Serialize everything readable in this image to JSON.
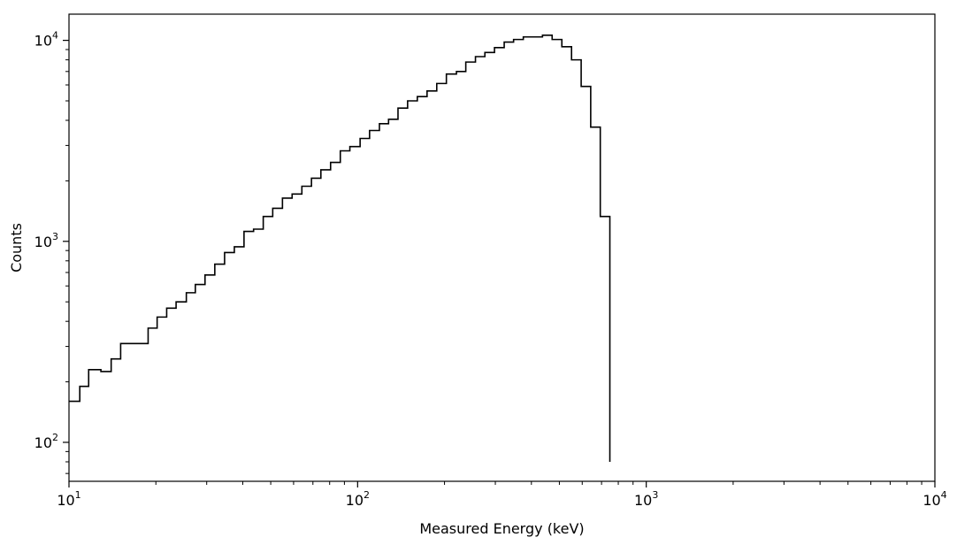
{
  "chart_data": {
    "type": "line",
    "style": "step",
    "title": "",
    "xlabel": "Measured Energy (keV)",
    "ylabel": "Counts",
    "x_scale": "log",
    "y_scale": "log",
    "xlim": [
      10,
      10000
    ],
    "ylim": [
      64,
      13500
    ],
    "grid": false,
    "legend": "none",
    "line_color": "#000000",
    "x_ticks": [
      {
        "base": "10",
        "exp": "1",
        "value": 10
      },
      {
        "base": "10",
        "exp": "2",
        "value": 100
      },
      {
        "base": "10",
        "exp": "3",
        "value": 1000
      },
      {
        "base": "10",
        "exp": "4",
        "value": 10000
      }
    ],
    "y_ticks": [
      {
        "base": "10",
        "exp": "2",
        "value": 100
      },
      {
        "base": "10",
        "exp": "3",
        "value": 1000
      },
      {
        "base": "10",
        "exp": "4",
        "value": 10000
      }
    ],
    "bin_edges": [
      10.0,
      10.9,
      11.7,
      12.9,
      14.0,
      15.1,
      17.3,
      18.8,
      20.2,
      21.8,
      23.5,
      25.5,
      27.4,
      29.6,
      32.0,
      34.6,
      37.4,
      40.4,
      43.6,
      47.1,
      50.8,
      54.9,
      59.3,
      64.1,
      69.2,
      74.6,
      80.6,
      87.1,
      94.0,
      102.0,
      110.0,
      119.0,
      128.0,
      138.0,
      149.0,
      161.0,
      174.0,
      188.0,
      203.0,
      220.0,
      237.0,
      256.0,
      276.0,
      298.0,
      322.0,
      347.0,
      375.0,
      405.0,
      437.0,
      472.0,
      510.0,
      551.0,
      595.0,
      642.0,
      693.0,
      748.0
    ],
    "counts": [
      160,
      190,
      230,
      225,
      260,
      310,
      310,
      370,
      420,
      465,
      500,
      555,
      610,
      680,
      770,
      880,
      940,
      1120,
      1150,
      1330,
      1460,
      1640,
      1720,
      1880,
      2060,
      2270,
      2470,
      2820,
      2960,
      3250,
      3560,
      3850,
      4050,
      4600,
      5000,
      5250,
      5600,
      6100,
      6800,
      7000,
      7800,
      8300,
      8700,
      9200,
      9800,
      10100,
      10400,
      10400,
      10600,
      10100,
      9300,
      8000,
      5900,
      3700,
      1330,
      80
    ]
  }
}
